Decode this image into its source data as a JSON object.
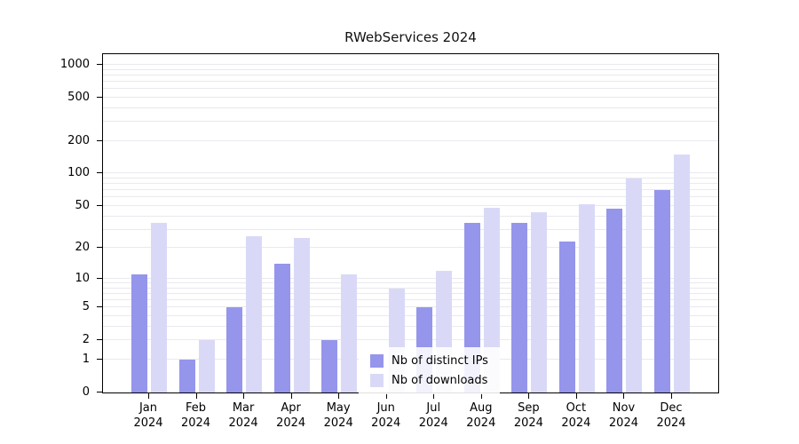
{
  "title": "RWebServices 2024",
  "chart_data": {
    "type": "bar",
    "title": "RWebServices 2024",
    "yscale": "log1p",
    "ylim": [
      0,
      1250
    ],
    "yticks": [
      0,
      1,
      2,
      5,
      10,
      20,
      50,
      100,
      200,
      500,
      1000
    ],
    "grid": "horizontal-minor-log",
    "legend_position": "inside-bottom-center",
    "categories": [
      "Jan\n2024",
      "Feb\n2024",
      "Mar\n2024",
      "Apr\n2024",
      "May\n2024",
      "Jun\n2024",
      "Jul\n2024",
      "Aug\n2024",
      "Sep\n2024",
      "Oct\n2024",
      "Nov\n2024",
      "Dec\n2024"
    ],
    "series": [
      {
        "name": "Nb of distinct IPs",
        "color": "#9595ec",
        "values": [
          11,
          1,
          5,
          14,
          2,
          0,
          5,
          35,
          35,
          23,
          47,
          70
        ]
      },
      {
        "name": "Nb of downloads",
        "color": "#d9d9f7",
        "values": [
          35,
          2,
          26,
          25,
          11,
          8,
          12,
          48,
          44,
          52,
          90,
          150
        ]
      }
    ]
  },
  "colors": {
    "background": "#ffffff",
    "grid": "#e9e9ef",
    "axis": "#000000",
    "bar_ips": "#9595ec",
    "bar_downloads": "#d9d9f7"
  }
}
